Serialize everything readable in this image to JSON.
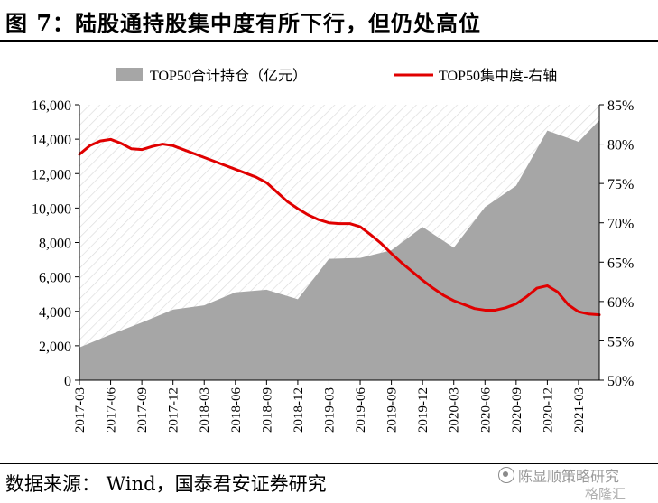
{
  "figure": {
    "title": "图 7：陆股通持股集中度有所下行，但仍处高位",
    "source": "数据来源： Wind，国泰君安证券研究",
    "watermark_text": "陈显顺策略研究",
    "watermark_sub": "格隆汇"
  },
  "colors": {
    "area": "#a6a6a6",
    "line": "#e00000",
    "hatch": "#d9d9d9"
  },
  "chart_data": {
    "type": "area",
    "categories": [
      "2017-03",
      "2017-06",
      "2017-09",
      "2017-12",
      "2018-03",
      "2018-06",
      "2018-09",
      "2018-12",
      "2019-03",
      "2019-06",
      "2019-09",
      "2019-12",
      "2020-03",
      "2020-06",
      "2020-09",
      "2020-12",
      "2021-03"
    ],
    "x": [
      "2017-03",
      "2017-04",
      "2017-05",
      "2017-06",
      "2017-07",
      "2017-08",
      "2017-09",
      "2017-10",
      "2017-11",
      "2017-12",
      "2018-01",
      "2018-02",
      "2018-03",
      "2018-04",
      "2018-05",
      "2018-06",
      "2018-07",
      "2018-08",
      "2018-09",
      "2018-10",
      "2018-11",
      "2018-12",
      "2019-01",
      "2019-02",
      "2019-03",
      "2019-04",
      "2019-05",
      "2019-06",
      "2019-07",
      "2019-08",
      "2019-09",
      "2019-10",
      "2019-11",
      "2019-12",
      "2020-01",
      "2020-02",
      "2020-03",
      "2020-04",
      "2020-05",
      "2020-06",
      "2020-07",
      "2020-08",
      "2020-09",
      "2020-10",
      "2020-11",
      "2020-12",
      "2021-01",
      "2021-02",
      "2021-03",
      "2021-04",
      "2021-05"
    ],
    "legend_placement": "top",
    "series": [
      {
        "name": "TOP50合计持仓（亿元）",
        "type": "area",
        "axis": "left",
        "x": [
          "2017-03",
          "2017-06",
          "2017-09",
          "2017-12",
          "2018-03",
          "2018-06",
          "2018-09",
          "2018-12",
          "2019-03",
          "2019-06",
          "2019-09",
          "2019-12",
          "2020-03",
          "2020-06",
          "2020-09",
          "2020-12",
          "2021-03",
          "2021-05"
        ],
        "values": [
          1900,
          2650,
          3350,
          4100,
          4350,
          5100,
          5250,
          4700,
          7050,
          7100,
          7550,
          8900,
          7700,
          10050,
          11300,
          14500,
          13850,
          15100
        ]
      },
      {
        "name": "TOP50集中度-右轴",
        "type": "line",
        "axis": "right",
        "x": [
          "2017-03",
          "2017-04",
          "2017-05",
          "2017-06",
          "2017-07",
          "2017-08",
          "2017-09",
          "2017-10",
          "2017-11",
          "2017-12",
          "2018-01",
          "2018-02",
          "2018-03",
          "2018-04",
          "2018-05",
          "2018-06",
          "2018-07",
          "2018-08",
          "2018-09",
          "2018-10",
          "2018-11",
          "2018-12",
          "2019-01",
          "2019-02",
          "2019-03",
          "2019-04",
          "2019-05",
          "2019-06",
          "2019-07",
          "2019-08",
          "2019-09",
          "2019-10",
          "2019-11",
          "2019-12",
          "2020-01",
          "2020-02",
          "2020-03",
          "2020-04",
          "2020-05",
          "2020-06",
          "2020-07",
          "2020-08",
          "2020-09",
          "2020-10",
          "2020-11",
          "2020-12",
          "2021-01",
          "2021-02",
          "2021-03",
          "2021-04",
          "2021-05"
        ],
        "values": [
          78.7,
          79.8,
          80.4,
          80.6,
          80.1,
          79.4,
          79.3,
          79.7,
          80.0,
          79.8,
          79.3,
          78.8,
          78.3,
          77.8,
          77.3,
          76.8,
          76.3,
          75.8,
          75.1,
          73.9,
          72.7,
          71.8,
          71.0,
          70.4,
          70.0,
          69.9,
          69.9,
          69.5,
          68.5,
          67.4,
          66.1,
          64.9,
          63.8,
          62.7,
          61.7,
          60.8,
          60.1,
          59.6,
          59.1,
          58.9,
          58.9,
          59.2,
          59.7,
          60.6,
          61.7,
          62.0,
          61.2,
          59.6,
          58.7,
          58.4,
          58.3
        ]
      }
    ],
    "y_left": {
      "ylim": [
        0,
        16000
      ],
      "ticks": [
        "0",
        "2,000",
        "4,000",
        "6,000",
        "8,000",
        "10,000",
        "12,000",
        "14,000",
        "16,000"
      ]
    },
    "y_right": {
      "ylim": [
        50,
        85
      ],
      "ticks": [
        "50%",
        "55%",
        "60%",
        "65%",
        "70%",
        "75%",
        "80%",
        "85%"
      ]
    }
  }
}
